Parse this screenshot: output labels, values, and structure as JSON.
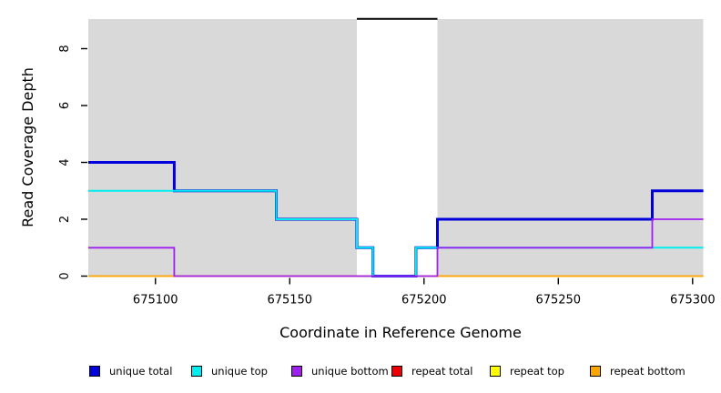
{
  "chart_data": {
    "type": "line",
    "step": true,
    "title": "",
    "xlabel": "Coordinate in Reference Genome",
    "ylabel": "Read Coverage Depth",
    "xlim": [
      675075,
      675304
    ],
    "ylim": [
      0,
      9.04
    ],
    "x_ticks": [
      675100,
      675150,
      675200,
      675250,
      675300
    ],
    "y_ticks": [
      0,
      2,
      4,
      6,
      8
    ],
    "plot_bg": "#d9d9d9",
    "grid": false,
    "legend_position": "bottom",
    "masked_region": {
      "x_start": 675175,
      "x_end": 675205,
      "fill": "#ffffff",
      "top_line_color": "#000000",
      "top_line_depth": 9.05
    },
    "series": [
      {
        "name": "unique total",
        "color": "#0000dd",
        "width": 3,
        "points": [
          [
            675075,
            4
          ],
          [
            675107,
            3
          ],
          [
            675145,
            2
          ],
          [
            675175,
            1
          ],
          [
            675181,
            0
          ],
          [
            675197,
            1
          ],
          [
            675205,
            2
          ],
          [
            675285,
            3
          ]
        ]
      },
      {
        "name": "unique top",
        "color": "#00eeee",
        "width": 2,
        "points": [
          [
            675075,
            3
          ],
          [
            675145,
            2
          ],
          [
            675175,
            1
          ],
          [
            675181,
            0
          ],
          [
            675197,
            1
          ]
        ]
      },
      {
        "name": "unique bottom",
        "color": "#a020f0",
        "width": 1.8,
        "points": [
          [
            675075,
            1
          ],
          [
            675107,
            0
          ],
          [
            675205,
            1
          ],
          [
            675285,
            2
          ]
        ]
      },
      {
        "name": "repeat total",
        "color": "#ee0000",
        "width": 1.5,
        "points": [
          [
            675075,
            0
          ]
        ]
      },
      {
        "name": "repeat top",
        "color": "#ffff00",
        "width": 1.5,
        "points": [
          [
            675075,
            0
          ]
        ]
      },
      {
        "name": "repeat bottom",
        "color": "#ffa500",
        "width": 1.5,
        "points": [
          [
            675075,
            0
          ]
        ]
      }
    ],
    "draw_order": [
      "repeat total",
      "repeat top",
      "repeat bottom",
      "unique total",
      "unique top",
      "unique bottom"
    ]
  },
  "legend": {
    "items": [
      {
        "label": "unique total",
        "color": "#0000dd"
      },
      {
        "label": "unique top",
        "color": "#00eeee"
      },
      {
        "label": "unique bottom",
        "color": "#a020f0"
      },
      {
        "label": "repeat total",
        "color": "#ee0000"
      },
      {
        "label": "repeat top",
        "color": "#ffff00"
      },
      {
        "label": "repeat bottom",
        "color": "#ffa500"
      }
    ]
  }
}
